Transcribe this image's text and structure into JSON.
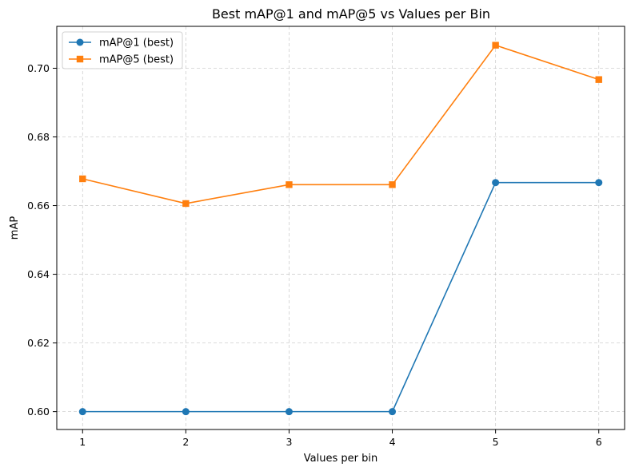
{
  "chart_data": {
    "type": "line",
    "title": "Best mAP@1 and mAP@5 vs Values per Bin",
    "xlabel": "Values per bin",
    "ylabel": "mAP",
    "x": [
      1,
      2,
      3,
      4,
      5,
      6
    ],
    "xlim": [
      0.75,
      6.25
    ],
    "ylim": [
      0.5948,
      0.7122
    ],
    "yticks": [
      "0.60",
      "0.62",
      "0.64",
      "0.66",
      "0.68",
      "0.70"
    ],
    "ytick_values": [
      0.6,
      0.62,
      0.64,
      0.66,
      0.68,
      0.7
    ],
    "xticks": [
      "1",
      "2",
      "3",
      "4",
      "5",
      "6"
    ],
    "grid": true,
    "legend_position": "top-left",
    "series": [
      {
        "name": "mAP@1 (best)",
        "marker": "circle",
        "color": "#1f77b4",
        "values": [
          0.6,
          0.6,
          0.6,
          0.6,
          0.6667,
          0.6667
        ]
      },
      {
        "name": "mAP@5 (best)",
        "marker": "square",
        "color": "#ff7f0e",
        "values": [
          0.6678,
          0.6606,
          0.6661,
          0.6661,
          0.7067,
          0.6967
        ]
      }
    ]
  }
}
